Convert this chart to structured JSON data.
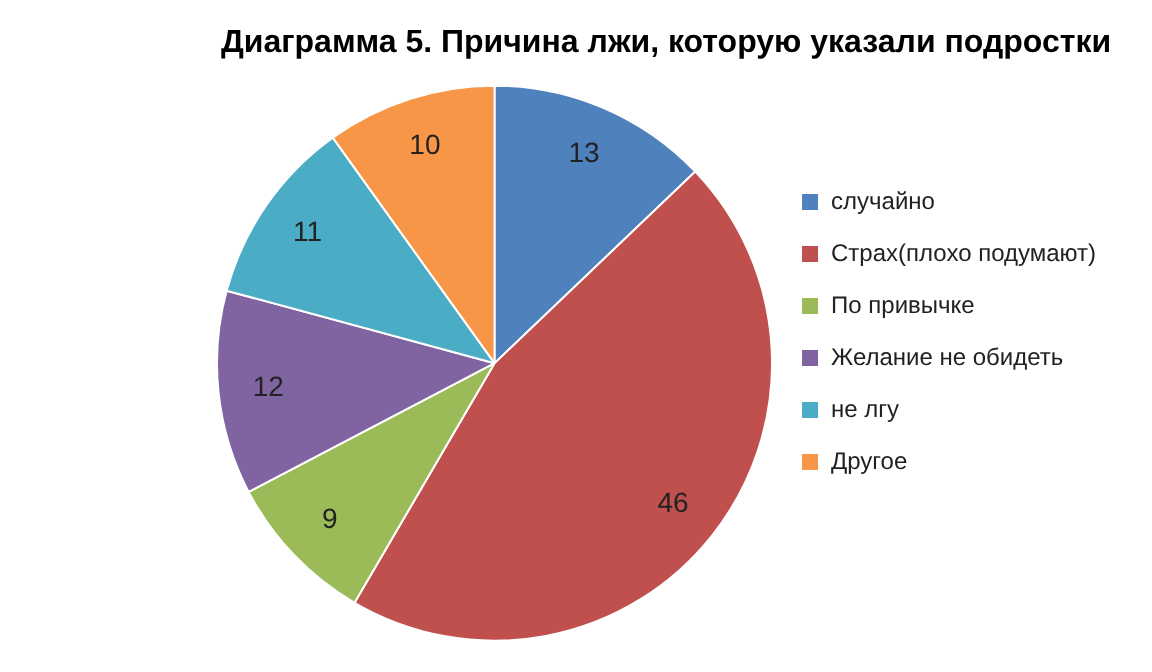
{
  "chart_data": {
    "type": "pie",
    "title": "Диаграмма 5. Причина лжи, которую указали подростки",
    "categories": [
      "случайно",
      "Страх(плохо подумают)",
      "По привычке",
      "Желание не обидеть",
      "не лгу",
      "Другое"
    ],
    "values": [
      13,
      46,
      9,
      12,
      11,
      10
    ],
    "colors": [
      "#4f81bd",
      "#c0504d",
      "#9bbb59",
      "#8064a2",
      "#4bacc6",
      "#f79646"
    ],
    "data_labels": true,
    "legend": "right"
  }
}
